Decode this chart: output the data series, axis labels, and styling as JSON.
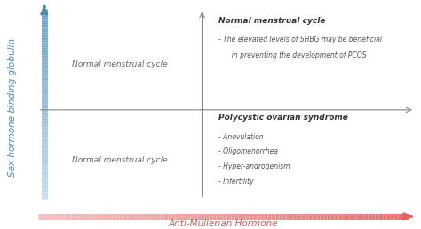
{
  "bg_color": "#ffffff",
  "quadrant_line_color": "#999999",
  "top_left_text": "Normal menstrual cycle",
  "bottom_left_text": "Normal menstrual cycle",
  "top_right_title": "Normal menstrual cycle",
  "top_right_bullet1": "- The elevated levels of SHBG may be beneficial",
  "top_right_bullet2": "  in preventing the development of PCOS",
  "bottom_right_title": "Polycystic ovarian syndrome",
  "bottom_right_bullets": [
    "- Anovulation",
    "- Oligomenorrhea",
    "- Hyper-androgenism",
    "- Infertility"
  ],
  "x_label": "Anti-Müllerian Hormone",
  "y_label": "Sex hormone binding globulin",
  "x_arrow_color_left": "#f5c0c0",
  "x_arrow_color_right": "#e87070",
  "y_arrow_color_bottom": "#c0ddf0",
  "y_arrow_color_top": "#5a9fcc",
  "title_fontsize": 6.5,
  "body_fontsize": 5.5,
  "label_fontsize": 7.5,
  "quadrant_text_fontsize": 6.5
}
